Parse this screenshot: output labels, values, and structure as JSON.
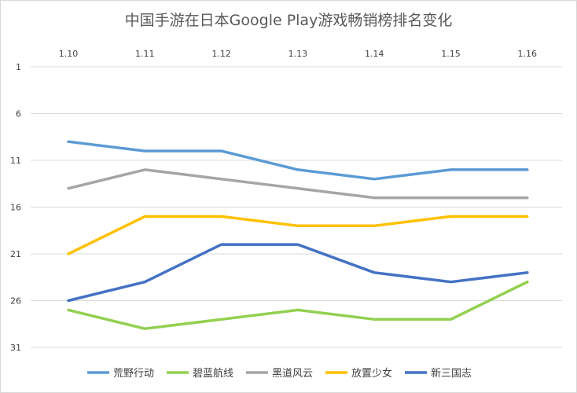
{
  "chart_data": {
    "type": "line",
    "title": "中国手游在日本Google Play游戏畅销榜排名变化",
    "x": [
      "1.10",
      "1.11",
      "1.12",
      "1.13",
      "1.14",
      "1.15",
      "1.16"
    ],
    "y_ticks": [
      "1",
      "6",
      "11",
      "16",
      "21",
      "26",
      "31"
    ],
    "ylim": [
      1,
      31
    ],
    "y_reversed": true,
    "x_axis_position": "top",
    "grid": "horizontal",
    "legend_position": "bottom",
    "series": [
      {
        "name": "荒野行动",
        "color": "#5b9bd5",
        "values": [
          9,
          10,
          10,
          12,
          13,
          12,
          12
        ]
      },
      {
        "name": "碧蓝航线",
        "color": "#92d050",
        "values": [
          27,
          29,
          28,
          27,
          28,
          28,
          24
        ]
      },
      {
        "name": "黑道风云",
        "color": "#a5a5a5",
        "values": [
          14,
          12,
          13,
          14,
          15,
          15,
          15
        ]
      },
      {
        "name": "放置少女",
        "color": "#ffc000",
        "values": [
          21,
          17,
          17,
          18,
          18,
          17,
          17
        ]
      },
      {
        "name": "新三国志",
        "color": "#4472c4",
        "values": [
          26,
          24,
          20,
          20,
          23,
          24,
          23
        ]
      }
    ]
  }
}
